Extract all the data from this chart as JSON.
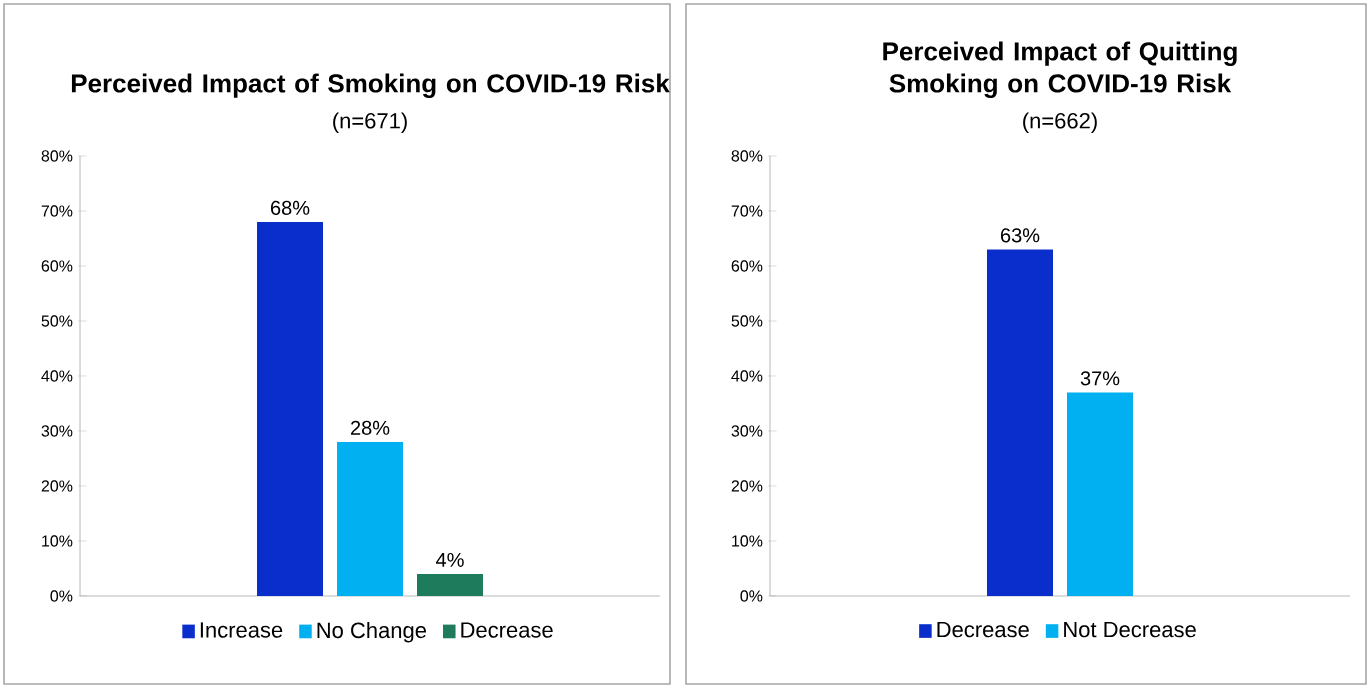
{
  "chart_data": [
    {
      "type": "bar",
      "title": "Perceived Impact of Smoking on COVID-19 Risk",
      "subtitle": "(n=671)",
      "categories": [
        null
      ],
      "series": [
        {
          "name": "Increase",
          "color": "#0a2ecc",
          "values": [
            68
          ],
          "value_labels": [
            "68%"
          ]
        },
        {
          "name": "No Change",
          "color": "#00b0f0",
          "values": [
            28
          ],
          "value_labels": [
            "28%"
          ]
        },
        {
          "name": "Decrease",
          "color": "#1e7b5c",
          "values": [
            4
          ],
          "value_labels": [
            "4%"
          ]
        }
      ],
      "ylim": [
        0,
        80
      ],
      "yticks": [
        {
          "value": 0,
          "label": "0%"
        },
        {
          "value": 10,
          "label": "10%"
        },
        {
          "value": 20,
          "label": "20%"
        },
        {
          "value": 30,
          "label": "30%"
        },
        {
          "value": 40,
          "label": "40%"
        },
        {
          "value": 50,
          "label": "50%"
        },
        {
          "value": 60,
          "label": "60%"
        },
        {
          "value": 70,
          "label": "70%"
        },
        {
          "value": 80,
          "label": "80%"
        }
      ],
      "legend": "bottom"
    },
    {
      "type": "bar",
      "title": "Perceived Impact of Quitting Smoking on COVID-19 Risk",
      "subtitle": "(n=662)",
      "categories": [
        null
      ],
      "series": [
        {
          "name": "Decrease",
          "color": "#0a2ecc",
          "values": [
            63
          ],
          "value_labels": [
            "63%"
          ]
        },
        {
          "name": "Not Decrease",
          "color": "#00b0f0",
          "values": [
            37
          ],
          "value_labels": [
            "37%"
          ]
        }
      ],
      "ylim": [
        0,
        80
      ],
      "yticks": [
        {
          "value": 0,
          "label": "0%"
        },
        {
          "value": 10,
          "label": "10%"
        },
        {
          "value": 20,
          "label": "20%"
        },
        {
          "value": 30,
          "label": "30%"
        },
        {
          "value": 40,
          "label": "40%"
        },
        {
          "value": 50,
          "label": "50%"
        },
        {
          "value": 60,
          "label": "60%"
        },
        {
          "value": 70,
          "label": "70%"
        },
        {
          "value": 80,
          "label": "80%"
        }
      ],
      "legend": "bottom"
    }
  ]
}
